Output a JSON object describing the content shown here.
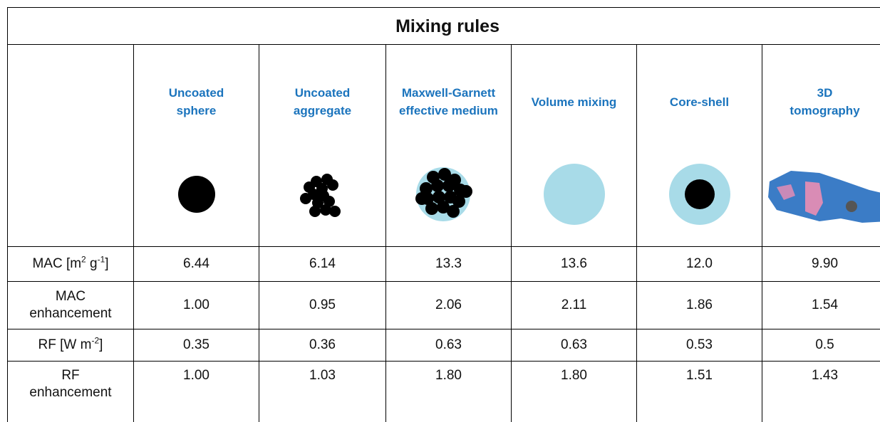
{
  "table": {
    "title": "Mixing rules",
    "columns": [
      "Uncoated\nsphere",
      "Uncoated\naggregate",
      "Maxwell-Garnett\neffective medium",
      "Volume mixing",
      "Core-shell",
      "3D\ntomography"
    ],
    "rows": [
      {
        "label_parts": [
          {
            "text": "MAC [m"
          },
          {
            "sup": "2"
          },
          {
            "text": " g"
          },
          {
            "sup": "-1"
          },
          {
            "text": "]"
          }
        ],
        "cells": [
          "6.44",
          "6.14",
          "13.3",
          "13.6",
          "12.0",
          "9.90"
        ]
      },
      {
        "label_parts": [
          {
            "text": "MAC\nenhancement"
          }
        ],
        "cells": [
          "1.00",
          "0.95",
          "2.06",
          "2.11",
          "1.86",
          "1.54"
        ]
      },
      {
        "label_parts": [
          {
            "text": "RF [W m"
          },
          {
            "sup": "-2"
          },
          {
            "text": "]"
          }
        ],
        "cells": [
          "0.35",
          "0.36",
          "0.63",
          "0.63",
          "0.53",
          "0.5"
        ]
      },
      {
        "label_parts": [
          {
            "text": "RF\nenhancement"
          }
        ],
        "cells": [
          "1.00",
          "1.03",
          "1.80",
          "1.80",
          "1.51",
          "1.43"
        ]
      }
    ]
  }
}
